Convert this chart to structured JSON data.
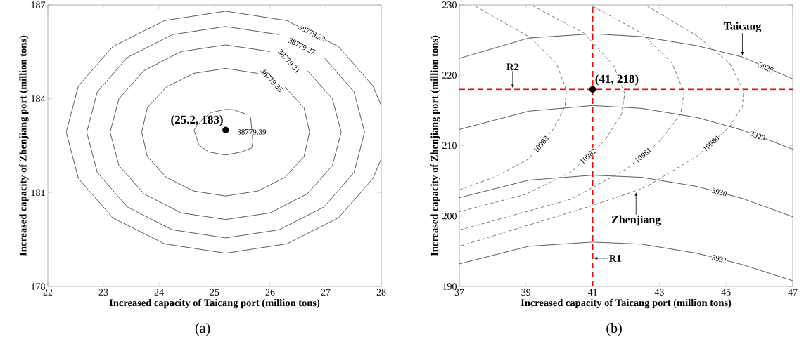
{
  "chart_data": [
    {
      "type": "line",
      "xlabel": "Increased capacity of Taicang port (million tons)",
      "ylabel": "Increased capacity of Zhenjiang port (million tons)",
      "xlim": [
        22,
        28
      ],
      "ylim": [
        178,
        187
      ],
      "xticks": [
        22,
        23,
        24,
        25,
        26,
        27,
        28
      ],
      "yticks": [
        178,
        181,
        184,
        187
      ],
      "series": [
        {
          "type": "line",
          "color": "#333333",
          "line_style": "solid",
          "x": [
            28,
            27.85,
            27.23,
            26.3,
            25.2,
            24.1,
            23.17,
            22.55,
            22.33,
            22.55,
            23.17,
            24.1,
            25.2,
            26.3,
            27.23,
            27.85,
            28
          ],
          "values": [
            183.78,
            184.41,
            185.67,
            186.5,
            186.8,
            186.5,
            185.67,
            184.41,
            182.93,
            181.45,
            180.19,
            179.36,
            179.06,
            179.36,
            180.19,
            181.45,
            182.08
          ]
        },
        {
          "type": "line",
          "color": "#333333",
          "line_style": "solid",
          "x": [
            26.16,
            25.2,
            24.24,
            23.43,
            22.89,
            22.7,
            22.89,
            23.43,
            24.24,
            25.2,
            26.16,
            26.97,
            27.51,
            27.7,
            27.51,
            26.97
          ],
          "values": [
            186.05,
            186.31,
            186.05,
            185.32,
            184.22,
            182.93,
            181.64,
            180.54,
            179.81,
            179.55,
            179.81,
            180.54,
            181.64,
            182.93,
            184.22,
            185.32
          ]
        },
        {
          "type": "line",
          "color": "#333333",
          "line_style": "solid",
          "x": [
            26.0,
            25.2,
            24.4,
            23.73,
            23.28,
            23.12,
            23.28,
            23.73,
            24.4,
            25.2,
            26.0,
            26.67,
            27.12,
            27.28,
            27.12,
            26.67
          ],
          "values": [
            185.51,
            185.72,
            185.51,
            184.9,
            184.0,
            182.93,
            181.86,
            180.96,
            180.35,
            180.14,
            180.35,
            180.96,
            181.86,
            182.93,
            184.0,
            184.9
          ]
        },
        {
          "type": "line",
          "color": "#333333",
          "line_style": "solid",
          "x": [
            25.78,
            25.2,
            24.62,
            24.13,
            23.79,
            23.69,
            23.79,
            24.13,
            24.62,
            25.2,
            25.78,
            26.27,
            26.61,
            26.71,
            26.61,
            26.27
          ],
          "values": [
            184.81,
            184.97,
            184.81,
            184.37,
            183.71,
            182.93,
            182.15,
            181.49,
            181.05,
            180.89,
            181.05,
            181.49,
            182.15,
            182.93,
            183.71,
            184.37
          ]
        },
        {
          "type": "line",
          "color": "#333333",
          "line_style": "solid",
          "x": [
            25.58,
            25.34,
            25.2,
            24.94,
            24.78,
            24.63,
            24.72,
            24.89,
            25.2,
            25.49,
            25.67,
            25.69,
            25.65
          ],
          "values": [
            183.5,
            183.65,
            183.66,
            183.56,
            183.34,
            183.0,
            182.52,
            182.3,
            182.2,
            182.3,
            182.43,
            182.62,
            183.4
          ]
        },
        {
          "type": "scatter",
          "name": "(25.2, 183)",
          "color": "#000000",
          "marker": "circle",
          "x": [
            25.2
          ],
          "values": [
            183
          ]
        }
      ],
      "annotations": [
        {
          "text": "38779.23",
          "x": 26.75,
          "y": 186.1
        },
        {
          "text": "38779.27",
          "x": 26.57,
          "y": 185.68
        },
        {
          "text": "38779.31",
          "x": 26.34,
          "y": 185.2
        },
        {
          "text": "38779.35",
          "x": 26.03,
          "y": 184.59
        },
        {
          "text": "38779.39",
          "x": 25.67,
          "y": 182.94
        },
        "(a)"
      ]
    },
    {
      "type": "line",
      "xlabel": "Increased capacity of Taicang port (million tons)",
      "ylabel": "Increased capacity of Zhenjiang port (million tons)",
      "xlim": [
        37,
        47
      ],
      "ylim": [
        190,
        230
      ],
      "xticks": [
        37,
        39,
        41,
        43,
        45,
        47
      ],
      "yticks": [
        190,
        200,
        210,
        220,
        230
      ],
      "series": [
        {
          "type": "line",
          "color": "#333333",
          "line_style": "solid",
          "x": [
            37,
            39.08,
            41.0,
            42.47,
            44.13,
            45.49,
            47
          ],
          "values": [
            222.4,
            225.3,
            225.9,
            225.5,
            224.2,
            222.6,
            219.5
          ]
        },
        {
          "type": "line",
          "color": "#333333",
          "line_style": "solid",
          "x": [
            37,
            39.08,
            41.0,
            42.47,
            44.13,
            45.49,
            47
          ],
          "values": [
            212.3,
            214.9,
            215.7,
            215.3,
            214.0,
            212.2,
            209.5
          ]
        },
        {
          "type": "line",
          "color": "#333333",
          "line_style": "solid",
          "x": [
            37,
            39.08,
            41.0,
            42.47,
            44.13,
            45.49,
            47
          ],
          "values": [
            202.6,
            205.1,
            205.8,
            205.5,
            204.2,
            202.5,
            199.9
          ]
        },
        {
          "type": "line",
          "color": "#333333",
          "line_style": "solid",
          "x": [
            37,
            39.08,
            41.0,
            42.47,
            44.13,
            45.49,
            47
          ],
          "values": [
            193.2,
            195.7,
            196.3,
            196.0,
            194.7,
            193.1,
            190.8
          ]
        },
        {
          "type": "line",
          "color": "#555555",
          "line_style": "dashed",
          "x": [
            37.49,
            39.15,
            39.91,
            40.21,
            40.17,
            39.83,
            39.08,
            38.09,
            37
          ],
          "values": [
            229.8,
            225.3,
            221.7,
            217.9,
            215.6,
            212.4,
            208.1,
            205.6,
            203.7
          ]
        },
        {
          "type": "line",
          "color": "#555555",
          "line_style": "dashed",
          "x": [
            39.19,
            40.74,
            41.64,
            41.96,
            41.87,
            41.34,
            40.36,
            39.0,
            37
          ],
          "values": [
            229.9,
            226.0,
            221.3,
            217.4,
            214.5,
            210.6,
            206.3,
            203.1,
            200.6
          ]
        },
        {
          "type": "line",
          "color": "#555555",
          "line_style": "dashed",
          "x": [
            41.0,
            42.47,
            43.38,
            43.74,
            43.64,
            43.0,
            42.02,
            40.36,
            37
          ],
          "values": [
            229.8,
            226.0,
            221.7,
            217.6,
            214.5,
            210.6,
            206.7,
            202.4,
            198.0
          ]
        },
        {
          "type": "line",
          "color": "#555555",
          "line_style": "dashed",
          "x": [
            42.62,
            44.13,
            45.11,
            45.53,
            45.49,
            45.11,
            44.13,
            42.62,
            42.3,
            41.0,
            37
          ],
          "values": [
            229.9,
            225.6,
            221.7,
            217.8,
            215.6,
            212.7,
            208.5,
            204.2,
            203.6,
            201.5,
            195.7
          ]
        },
        {
          "type": "scatter",
          "name": "(41, 218)",
          "color": "#000000",
          "marker": "circle",
          "x": [
            41
          ],
          "values": [
            218
          ]
        }
      ],
      "ref_lines": [
        {
          "axis": "x",
          "value": 41,
          "label": "R1",
          "color": "#ff0000",
          "line_style": "dashed"
        },
        {
          "axis": "y",
          "value": 218,
          "label": "R2",
          "color": "#ff0000",
          "line_style": "dashed"
        }
      ],
      "annotations": [
        {
          "text": "3928",
          "x": 46.2,
          "y": 221.1
        },
        {
          "text": "3929",
          "x": 45.95,
          "y": 211.4
        },
        {
          "text": "3930",
          "x": 44.8,
          "y": 203.4
        },
        {
          "text": "3931",
          "x": 44.8,
          "y": 193.9
        },
        {
          "text": "10983",
          "x": 39.45,
          "y": 210.2
        },
        {
          "text": "10982",
          "x": 40.86,
          "y": 208.5
        },
        {
          "text": "10981",
          "x": 42.51,
          "y": 208.65
        },
        {
          "text": "10980",
          "x": 44.55,
          "y": 210.3
        },
        {
          "text": "Taicang",
          "x": 45.49,
          "y": 222.6
        },
        {
          "text": "Zhenjiang",
          "x": 42.3,
          "y": 203.6
        },
        "(b)"
      ]
    }
  ]
}
